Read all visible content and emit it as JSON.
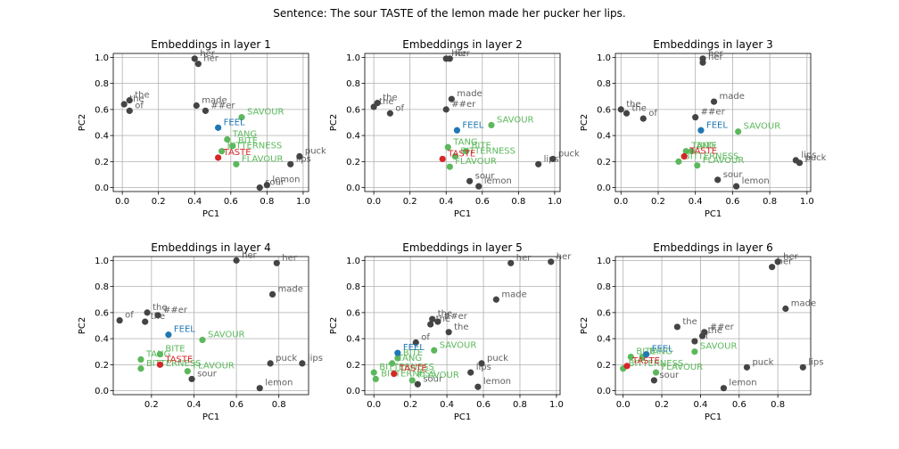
{
  "suptitle": "Sentence: The sour TASTE of the lemon made her pucker her lips.",
  "colors": {
    "other": "#444444",
    "target": "#d62728",
    "related": "#5cb85c",
    "feel": "#1f77b4"
  },
  "chart_data": [
    {
      "type": "scatter",
      "title": "Embeddings in layer 1",
      "xlabel": "PC1",
      "ylabel": "PC2",
      "xlim": [
        -0.05,
        1.03
      ],
      "ylim": [
        -0.03,
        1.03
      ],
      "xticks": [
        "0.0",
        "0.2",
        "0.4",
        "0.6",
        "0.8",
        "1.0"
      ],
      "xtick_values": [
        0,
        0.2,
        0.4,
        0.6,
        0.8,
        1.0
      ],
      "yticks": [
        "0.0",
        "0.2",
        "0.4",
        "0.6",
        "0.8",
        "1.0"
      ],
      "ytick_values": [
        0,
        0.2,
        0.4,
        0.6,
        0.8,
        1.0
      ],
      "grid": true,
      "points": [
        {
          "label": "her",
          "x": 0.4,
          "y": 0.99,
          "group": "other"
        },
        {
          "label": "her",
          "x": 0.42,
          "y": 0.95,
          "group": "other"
        },
        {
          "label": "the",
          "x": 0.04,
          "y": 0.67,
          "group": "other"
        },
        {
          "label": "the",
          "x": 0.01,
          "y": 0.64,
          "group": "other"
        },
        {
          "label": "of",
          "x": 0.04,
          "y": 0.59,
          "group": "other"
        },
        {
          "label": "made",
          "x": 0.41,
          "y": 0.63,
          "group": "other"
        },
        {
          "label": "##er",
          "x": 0.46,
          "y": 0.59,
          "group": "other"
        },
        {
          "label": "puck",
          "x": 0.98,
          "y": 0.24,
          "group": "other"
        },
        {
          "label": "lips",
          "x": 0.93,
          "y": 0.18,
          "group": "other"
        },
        {
          "label": "lemon",
          "x": 0.8,
          "y": 0.02,
          "group": "other"
        },
        {
          "label": "sour",
          "x": 0.76,
          "y": 0.0,
          "group": "other"
        },
        {
          "label": "SAVOUR",
          "x": 0.66,
          "y": 0.54,
          "group": "related"
        },
        {
          "label": "TANG",
          "x": 0.58,
          "y": 0.37,
          "group": "related"
        },
        {
          "label": "BITE",
          "x": 0.61,
          "y": 0.32,
          "group": "related"
        },
        {
          "label": "BITTERNESS",
          "x": 0.55,
          "y": 0.28,
          "group": "related"
        },
        {
          "label": "FLAVOUR",
          "x": 0.63,
          "y": 0.18,
          "group": "related"
        },
        {
          "label": "FEEL",
          "x": 0.53,
          "y": 0.46,
          "group": "feel"
        },
        {
          "label": "TASTE",
          "x": 0.53,
          "y": 0.23,
          "group": "target"
        }
      ]
    },
    {
      "type": "scatter",
      "title": "Embeddings in layer 2",
      "xlabel": "PC1",
      "ylabel": "PC2",
      "xlim": [
        -0.05,
        1.03
      ],
      "ylim": [
        -0.03,
        1.03
      ],
      "xticks": [
        "0.0",
        "0.2",
        "0.4",
        "0.6",
        "0.8",
        "1.0"
      ],
      "xtick_values": [
        0,
        0.2,
        0.4,
        0.6,
        0.8,
        1.0
      ],
      "yticks": [
        "0.0",
        "0.2",
        "0.4",
        "0.6",
        "0.8",
        "1.0"
      ],
      "ytick_values": [
        0,
        0.2,
        0.4,
        0.6,
        0.8,
        1.0
      ],
      "grid": true,
      "points": [
        {
          "label": "her",
          "x": 0.4,
          "y": 0.99,
          "group": "other"
        },
        {
          "label": "her",
          "x": 0.42,
          "y": 0.99,
          "group": "other"
        },
        {
          "label": "the",
          "x": 0.02,
          "y": 0.65,
          "group": "other"
        },
        {
          "label": "the",
          "x": 0.0,
          "y": 0.62,
          "group": "other"
        },
        {
          "label": "of",
          "x": 0.09,
          "y": 0.57,
          "group": "other"
        },
        {
          "label": "made",
          "x": 0.43,
          "y": 0.68,
          "group": "other"
        },
        {
          "label": "##er",
          "x": 0.4,
          "y": 0.6,
          "group": "other"
        },
        {
          "label": "puck",
          "x": 0.99,
          "y": 0.22,
          "group": "other"
        },
        {
          "label": "lips",
          "x": 0.91,
          "y": 0.18,
          "group": "other"
        },
        {
          "label": "sour",
          "x": 0.53,
          "y": 0.05,
          "group": "other"
        },
        {
          "label": "lemon",
          "x": 0.58,
          "y": 0.01,
          "group": "other"
        },
        {
          "label": "SAVOUR",
          "x": 0.65,
          "y": 0.48,
          "group": "related"
        },
        {
          "label": "TANG",
          "x": 0.41,
          "y": 0.31,
          "group": "related"
        },
        {
          "label": "BITE",
          "x": 0.51,
          "y": 0.28,
          "group": "related"
        },
        {
          "label": "BITTERNESS",
          "x": 0.45,
          "y": 0.24,
          "group": "related"
        },
        {
          "label": "FLAVOUR",
          "x": 0.42,
          "y": 0.16,
          "group": "related"
        },
        {
          "label": "FEEL",
          "x": 0.46,
          "y": 0.44,
          "group": "feel"
        },
        {
          "label": "TASTE",
          "x": 0.38,
          "y": 0.22,
          "group": "target"
        }
      ]
    },
    {
      "type": "scatter",
      "title": "Embeddings in layer 3",
      "xlabel": "PC1",
      "ylabel": "PC2",
      "xlim": [
        -0.03,
        1.02
      ],
      "ylim": [
        -0.03,
        1.03
      ],
      "xticks": [
        "0.0",
        "0.2",
        "0.4",
        "0.6",
        "0.8",
        "1.0"
      ],
      "xtick_values": [
        0,
        0.2,
        0.4,
        0.6,
        0.8,
        1.0
      ],
      "yticks": [
        "0.0",
        "0.2",
        "0.4",
        "0.6",
        "0.8",
        "1.0"
      ],
      "ytick_values": [
        0,
        0.2,
        0.4,
        0.6,
        0.8,
        1.0
      ],
      "grid": true,
      "points": [
        {
          "label": "her",
          "x": 0.44,
          "y": 0.99,
          "group": "other"
        },
        {
          "label": "her",
          "x": 0.44,
          "y": 0.96,
          "group": "other"
        },
        {
          "label": "the",
          "x": 0.0,
          "y": 0.6,
          "group": "other"
        },
        {
          "label": "the",
          "x": 0.03,
          "y": 0.57,
          "group": "other"
        },
        {
          "label": "of",
          "x": 0.12,
          "y": 0.53,
          "group": "other"
        },
        {
          "label": "made",
          "x": 0.5,
          "y": 0.66,
          "group": "other"
        },
        {
          "label": "##er",
          "x": 0.4,
          "y": 0.54,
          "group": "other"
        },
        {
          "label": "lips",
          "x": 0.94,
          "y": 0.21,
          "group": "other"
        },
        {
          "label": "puck",
          "x": 0.96,
          "y": 0.19,
          "group": "other"
        },
        {
          "label": "sour",
          "x": 0.52,
          "y": 0.06,
          "group": "other"
        },
        {
          "label": "lemon",
          "x": 0.62,
          "y": 0.01,
          "group": "other"
        },
        {
          "label": "SAVOUR",
          "x": 0.63,
          "y": 0.43,
          "group": "related"
        },
        {
          "label": "TANG",
          "x": 0.35,
          "y": 0.28,
          "group": "related"
        },
        {
          "label": "BITE",
          "x": 0.38,
          "y": 0.28,
          "group": "related"
        },
        {
          "label": "BITTERNESS",
          "x": 0.31,
          "y": 0.2,
          "group": "related"
        },
        {
          "label": "FLAVOUR",
          "x": 0.41,
          "y": 0.17,
          "group": "related"
        },
        {
          "label": "FEEL",
          "x": 0.43,
          "y": 0.44,
          "group": "feel"
        },
        {
          "label": "TASTE",
          "x": 0.34,
          "y": 0.24,
          "group": "target"
        }
      ]
    },
    {
      "type": "scatter",
      "title": "Embeddings in layer 4",
      "xlabel": "PC1",
      "ylabel": "PC2",
      "xlim": [
        0.02,
        0.94
      ],
      "ylim": [
        -0.03,
        1.03
      ],
      "xticks": [
        "0.2",
        "0.4",
        "0.6",
        "0.8"
      ],
      "xtick_values": [
        0.2,
        0.4,
        0.6,
        0.8
      ],
      "yticks": [
        "0.0",
        "0.2",
        "0.4",
        "0.6",
        "0.8",
        "1.0"
      ],
      "ytick_values": [
        0,
        0.2,
        0.4,
        0.6,
        0.8,
        1.0
      ],
      "grid": true,
      "points": [
        {
          "label": "her",
          "x": 0.6,
          "y": 1.0,
          "group": "other"
        },
        {
          "label": "her",
          "x": 0.79,
          "y": 0.98,
          "group": "other"
        },
        {
          "label": "made",
          "x": 0.77,
          "y": 0.74,
          "group": "other"
        },
        {
          "label": "of",
          "x": 0.05,
          "y": 0.54,
          "group": "other"
        },
        {
          "label": "the",
          "x": 0.18,
          "y": 0.6,
          "group": "other"
        },
        {
          "label": "the",
          "x": 0.17,
          "y": 0.53,
          "group": "other"
        },
        {
          "label": "##er",
          "x": 0.23,
          "y": 0.58,
          "group": "other"
        },
        {
          "label": "puck",
          "x": 0.76,
          "y": 0.21,
          "group": "other"
        },
        {
          "label": "lips",
          "x": 0.91,
          "y": 0.21,
          "group": "other"
        },
        {
          "label": "sour",
          "x": 0.39,
          "y": 0.09,
          "group": "other"
        },
        {
          "label": "lemon",
          "x": 0.71,
          "y": 0.02,
          "group": "other"
        },
        {
          "label": "SAVOUR",
          "x": 0.44,
          "y": 0.39,
          "group": "related"
        },
        {
          "label": "TANG",
          "x": 0.15,
          "y": 0.24,
          "group": "related"
        },
        {
          "label": "BITE",
          "x": 0.24,
          "y": 0.28,
          "group": "related"
        },
        {
          "label": "BITTERNESS",
          "x": 0.15,
          "y": 0.17,
          "group": "related"
        },
        {
          "label": "FLAVOUR",
          "x": 0.37,
          "y": 0.15,
          "group": "related"
        },
        {
          "label": "FEEL",
          "x": 0.28,
          "y": 0.43,
          "group": "feel"
        },
        {
          "label": "TASTE",
          "x": 0.24,
          "y": 0.2,
          "group": "target"
        }
      ]
    },
    {
      "type": "scatter",
      "title": "Embeddings in layer 5",
      "xlabel": "PC1",
      "ylabel": "PC2",
      "xlim": [
        -0.05,
        1.02
      ],
      "ylim": [
        -0.03,
        1.03
      ],
      "xticks": [
        "0.0",
        "0.2",
        "0.4",
        "0.6",
        "0.8",
        "1.0"
      ],
      "xtick_values": [
        0,
        0.2,
        0.4,
        0.6,
        0.8,
        1.0
      ],
      "yticks": [
        "0.0",
        "0.2",
        "0.4",
        "0.6",
        "0.8",
        "1.0"
      ],
      "ytick_values": [
        0,
        0.2,
        0.4,
        0.6,
        0.8,
        1.0
      ],
      "grid": true,
      "points": [
        {
          "label": "her",
          "x": 0.75,
          "y": 0.98,
          "group": "other"
        },
        {
          "label": "her",
          "x": 0.97,
          "y": 0.99,
          "group": "other"
        },
        {
          "label": "made",
          "x": 0.67,
          "y": 0.7,
          "group": "other"
        },
        {
          "label": "the",
          "x": 0.32,
          "y": 0.55,
          "group": "other"
        },
        {
          "label": "the",
          "x": 0.31,
          "y": 0.51,
          "group": "other"
        },
        {
          "label": "##er",
          "x": 0.35,
          "y": 0.53,
          "group": "other"
        },
        {
          "label": "the",
          "x": 0.41,
          "y": 0.45,
          "group": "other"
        },
        {
          "label": "of",
          "x": 0.23,
          "y": 0.37,
          "group": "other"
        },
        {
          "label": "puck",
          "x": 0.59,
          "y": 0.21,
          "group": "other"
        },
        {
          "label": "lips",
          "x": 0.53,
          "y": 0.14,
          "group": "other"
        },
        {
          "label": "sour",
          "x": 0.24,
          "y": 0.05,
          "group": "other"
        },
        {
          "label": "lemon",
          "x": 0.57,
          "y": 0.03,
          "group": "other"
        },
        {
          "label": "SAVOUR",
          "x": 0.33,
          "y": 0.31,
          "group": "related"
        },
        {
          "label": "TANG",
          "x": 0.1,
          "y": 0.21,
          "group": "related"
        },
        {
          "label": "BITE",
          "x": 0.13,
          "y": 0.25,
          "group": "related"
        },
        {
          "label": "BITTERNESS",
          "x": 0.0,
          "y": 0.14,
          "group": "related"
        },
        {
          "label": "FLAVOUR",
          "x": 0.21,
          "y": 0.08,
          "group": "related"
        },
        {
          "label": "BITTERNESS",
          "x": 0.01,
          "y": 0.09,
          "group": "related"
        },
        {
          "label": "FEEL",
          "x": 0.13,
          "y": 0.29,
          "group": "feel"
        },
        {
          "label": "TASTE",
          "x": 0.11,
          "y": 0.13,
          "group": "target"
        }
      ]
    },
    {
      "type": "scatter",
      "title": "Embeddings in layer 6",
      "xlabel": "PC1",
      "ylabel": "PC2",
      "xlim": [
        -0.04,
        0.97
      ],
      "ylim": [
        -0.03,
        1.03
      ],
      "xticks": [
        "0.0",
        "0.2",
        "0.4",
        "0.6",
        "0.8"
      ],
      "xtick_values": [
        0,
        0.2,
        0.4,
        0.6,
        0.8
      ],
      "yticks": [
        "0.0",
        "0.2",
        "0.4",
        "0.6",
        "0.8",
        "1.0"
      ],
      "ytick_values": [
        0,
        0.2,
        0.4,
        0.6,
        0.8,
        1.0
      ],
      "grid": true,
      "points": [
        {
          "label": "her",
          "x": 0.8,
          "y": 0.99,
          "group": "other"
        },
        {
          "label": "her",
          "x": 0.77,
          "y": 0.95,
          "group": "other"
        },
        {
          "label": "made",
          "x": 0.84,
          "y": 0.63,
          "group": "other"
        },
        {
          "label": "the",
          "x": 0.28,
          "y": 0.49,
          "group": "other"
        },
        {
          "label": "##er",
          "x": 0.42,
          "y": 0.45,
          "group": "other"
        },
        {
          "label": "the",
          "x": 0.41,
          "y": 0.42,
          "group": "other"
        },
        {
          "label": "of",
          "x": 0.37,
          "y": 0.38,
          "group": "other"
        },
        {
          "label": "puck",
          "x": 0.64,
          "y": 0.18,
          "group": "other"
        },
        {
          "label": "lips",
          "x": 0.93,
          "y": 0.18,
          "group": "other"
        },
        {
          "label": "sour",
          "x": 0.16,
          "y": 0.08,
          "group": "other"
        },
        {
          "label": "lemon",
          "x": 0.52,
          "y": 0.02,
          "group": "other"
        },
        {
          "label": "SAVOUR",
          "x": 0.37,
          "y": 0.3,
          "group": "related"
        },
        {
          "label": "BITE",
          "x": 0.04,
          "y": 0.26,
          "group": "related"
        },
        {
          "label": "TANG",
          "x": 0.1,
          "y": 0.26,
          "group": "related"
        },
        {
          "label": "BITTERNESS",
          "x": 0.0,
          "y": 0.17,
          "group": "related"
        },
        {
          "label": "FLAVOUR",
          "x": 0.17,
          "y": 0.14,
          "group": "related"
        },
        {
          "label": "FEEL",
          "x": 0.12,
          "y": 0.28,
          "group": "feel"
        },
        {
          "label": "TASTE",
          "x": 0.02,
          "y": 0.19,
          "group": "target"
        }
      ]
    }
  ]
}
